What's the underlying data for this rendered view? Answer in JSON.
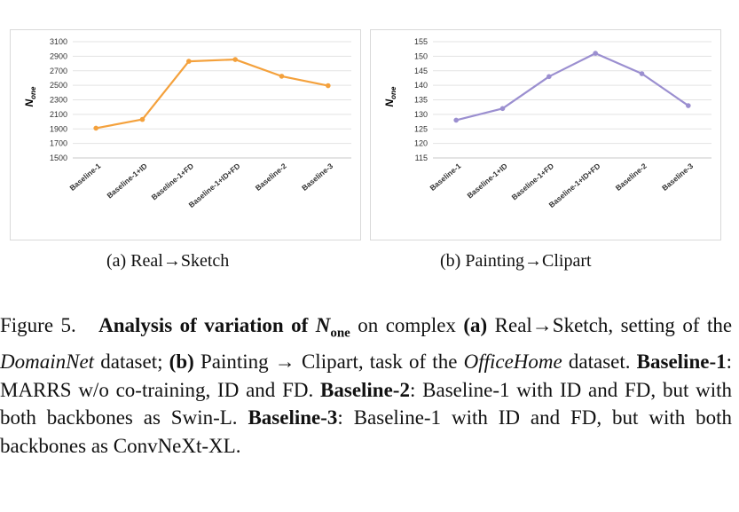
{
  "chart_data": [
    {
      "type": "line",
      "ylabel": "N",
      "ylabel_sub": "one",
      "categories": [
        "Baseline-1",
        "Baseline-1+ID",
        "Baseline-1+FD",
        "Baseline-1+ID+FD",
        "Baseline-2",
        "Baseline-3"
      ],
      "series": [
        {
          "values": [
            1910,
            2030,
            2830,
            2855,
            2625,
            2495
          ],
          "color": "#f4a13c"
        }
      ],
      "ylim": [
        1500,
        3100
      ],
      "yticks": [
        1500,
        1700,
        1900,
        2100,
        2300,
        2500,
        2700,
        2900,
        3100
      ],
      "grid": true
    },
    {
      "type": "line",
      "ylabel": "N",
      "ylabel_sub": "one",
      "categories": [
        "Baseline-1",
        "Baseline-1+ID",
        "Baseline-1+FD",
        "Baseline-1+ID+FD",
        "Baseline-2",
        "Baseline-3"
      ],
      "series": [
        {
          "values": [
            128,
            132,
            143,
            151,
            144,
            133
          ],
          "color": "#9b8fd0"
        }
      ],
      "ylim": [
        115,
        155
      ],
      "yticks": [
        115,
        120,
        125,
        130,
        135,
        140,
        145,
        150,
        155
      ],
      "grid": true
    }
  ],
  "subcaptions": {
    "a": "(a) Real→Sketch",
    "b": "(b) Painting→Clipart"
  },
  "caption": {
    "fig_label": "Figure 5.",
    "bold_pre": "Analysis of variation of",
    "var_n": "N",
    "var_sub": "one",
    "bold_post": "on complex",
    "label_a": "(a)",
    "text_a": "Real→Sketch, setting of the",
    "dataset_a": "DomainNet",
    "text_a_end": "dataset;",
    "label_b": "(b)",
    "text_b": "Painting → Clipart, task of the",
    "dataset_b": "OfficeHome",
    "text_b_end": "dataset.",
    "b1_name": "Baseline-1",
    "b1_text": ": MARRS w/o co-training, ID and FD.",
    "b2_name": "Baseline-2",
    "b2_text": ": Baseline-1 with ID and FD, but with both backbones as Swin-L.",
    "b3_name": "Baseline-3",
    "b3_text": ": Baseline-1 with ID and FD, but with both backbones as ConvNeXt-XL."
  }
}
